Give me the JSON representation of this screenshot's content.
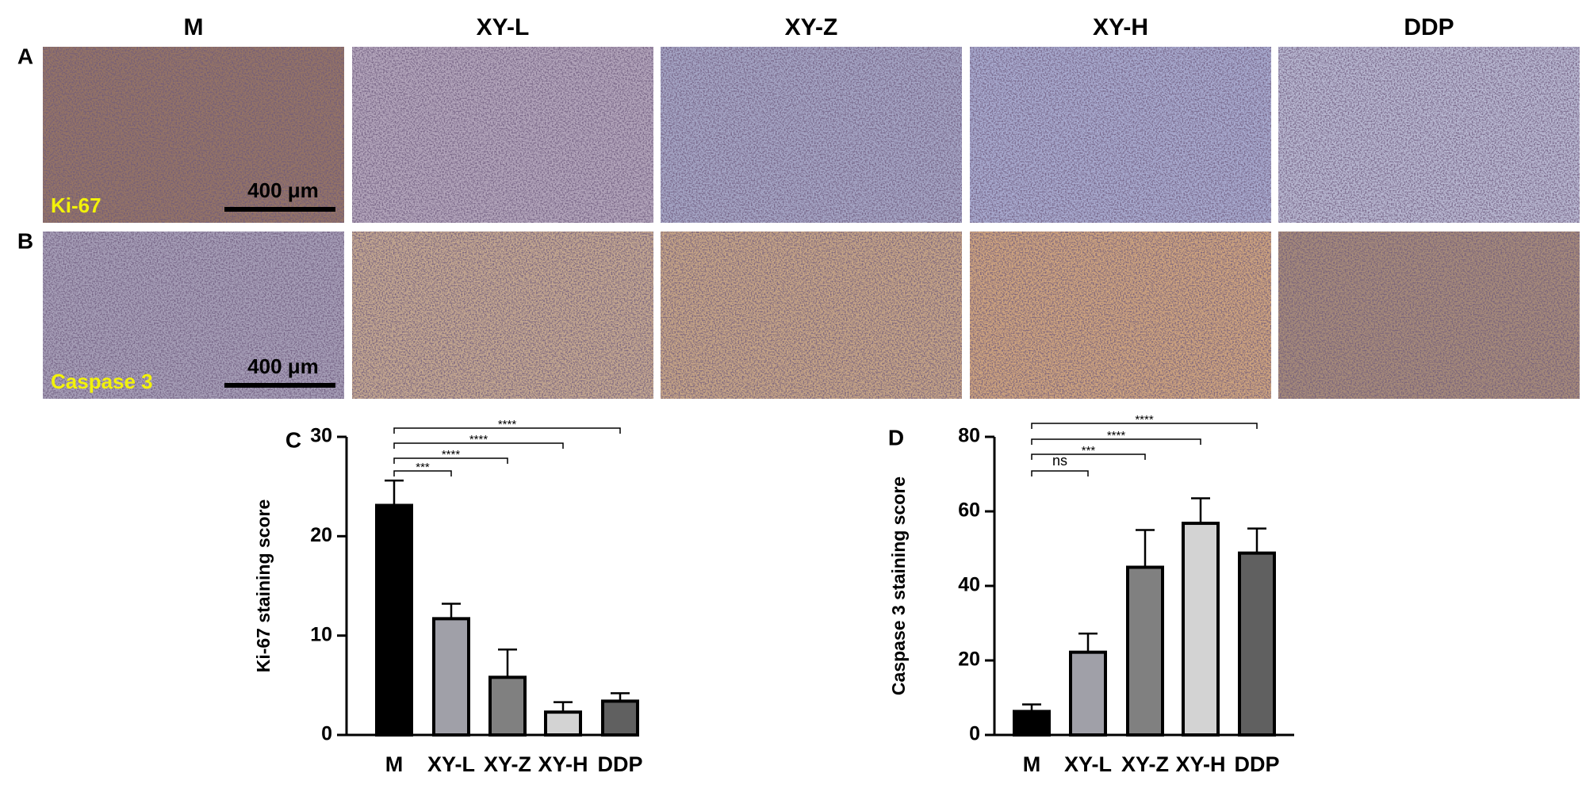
{
  "columns": [
    "M",
    "XY-L",
    "XY-Z",
    "XY-H",
    "DDP"
  ],
  "rows": [
    {
      "panel": "A",
      "stain": "Ki-67",
      "scale_bar": "400 μm"
    },
    {
      "panel": "B",
      "stain": "Caspase 3",
      "scale_bar": "400 μm"
    }
  ],
  "chart_data": [
    {
      "type": "bar",
      "panel": "C",
      "y_label": "Ki-67 staining score",
      "categories": [
        "M",
        "XY-L",
        "XY-Z",
        "XY-H",
        "DDP"
      ],
      "values": [
        23.1,
        11.7,
        5.8,
        2.3,
        3.4
      ],
      "errors": [
        2.5,
        1.5,
        2.8,
        1.0,
        0.8
      ],
      "colors": [
        "#000000",
        "#a0a0a8",
        "#808080",
        "#d3d3d3",
        "#606060"
      ],
      "ylim": [
        0,
        30
      ],
      "yticks": [
        0,
        10,
        20,
        30
      ],
      "comparisons": [
        {
          "pair": [
            0,
            1
          ],
          "label": "***"
        },
        {
          "pair": [
            0,
            2
          ],
          "label": "****"
        },
        {
          "pair": [
            0,
            3
          ],
          "label": "****"
        },
        {
          "pair": [
            0,
            4
          ],
          "label": "****"
        }
      ]
    },
    {
      "type": "bar",
      "panel": "D",
      "y_label": "Caspase 3 staining score",
      "categories": [
        "M",
        "XY-L",
        "XY-Z",
        "XY-H",
        "DDP"
      ],
      "values": [
        6.3,
        22.2,
        45.0,
        56.8,
        48.8
      ],
      "errors": [
        1.9,
        5.0,
        10.0,
        6.7,
        6.6
      ],
      "colors": [
        "#000000",
        "#a0a0a8",
        "#808080",
        "#d3d3d3",
        "#606060"
      ],
      "ylim": [
        0,
        80
      ],
      "yticks": [
        0,
        20,
        40,
        60,
        80
      ],
      "comparisons": [
        {
          "pair": [
            0,
            1
          ],
          "label": "ns"
        },
        {
          "pair": [
            0,
            2
          ],
          "label": "***"
        },
        {
          "pair": [
            0,
            3
          ],
          "label": "****"
        },
        {
          "pair": [
            0,
            4
          ],
          "label": "****"
        }
      ]
    }
  ]
}
